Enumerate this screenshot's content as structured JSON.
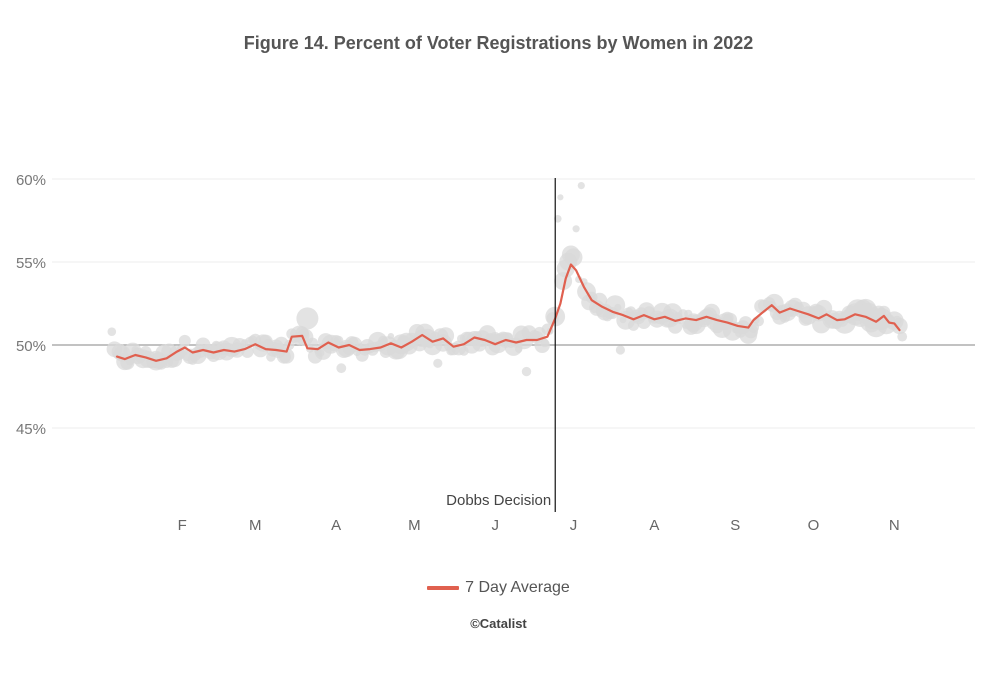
{
  "chart_data": {
    "type": "scatter",
    "title": "Figure 14. Percent of Voter Registrations by Women in 2022",
    "xlabel": "",
    "ylabel": "",
    "x_unit": "day of year 2022",
    "xlim": [
      0,
      336
    ],
    "ylim": [
      40,
      60
    ],
    "baseline": 50,
    "y_ticks": [
      {
        "value": 60,
        "label": "60%"
      },
      {
        "value": 55,
        "label": "55%"
      },
      {
        "value": 50,
        "label": "50%"
      },
      {
        "value": 45,
        "label": "45%"
      }
    ],
    "x_ticks": [
      {
        "value": 32,
        "label": "F"
      },
      {
        "value": 60,
        "label": "M"
      },
      {
        "value": 91,
        "label": "A"
      },
      {
        "value": 121,
        "label": "M"
      },
      {
        "value": 152,
        "label": "J"
      },
      {
        "value": 182,
        "label": "J"
      },
      {
        "value": 213,
        "label": "A"
      },
      {
        "value": 244,
        "label": "S"
      },
      {
        "value": 274,
        "label": "O"
      },
      {
        "value": 305,
        "label": "N"
      }
    ],
    "annotation": {
      "day": 175,
      "label": "Dobbs Decision"
    },
    "seven_day_average": {
      "name": "7 Day Average",
      "color": "#e0604f",
      "anchors": [
        [
          7,
          49.3
        ],
        [
          10,
          49.15
        ],
        [
          14,
          49.4
        ],
        [
          18,
          49.25
        ],
        [
          22,
          49.05
        ],
        [
          26,
          49.2
        ],
        [
          30,
          49.6
        ],
        [
          33,
          49.85
        ],
        [
          36,
          49.55
        ],
        [
          40,
          49.7
        ],
        [
          44,
          49.55
        ],
        [
          48,
          49.7
        ],
        [
          52,
          49.6
        ],
        [
          56,
          49.75
        ],
        [
          60,
          50.05
        ],
        [
          64,
          49.75
        ],
        [
          68,
          49.7
        ],
        [
          72,
          49.6
        ],
        [
          74,
          50.5
        ],
        [
          78,
          50.55
        ],
        [
          80,
          49.8
        ],
        [
          84,
          49.75
        ],
        [
          88,
          50.15
        ],
        [
          92,
          49.85
        ],
        [
          96,
          50.0
        ],
        [
          100,
          49.7
        ],
        [
          104,
          49.75
        ],
        [
          108,
          49.85
        ],
        [
          112,
          50.1
        ],
        [
          116,
          49.85
        ],
        [
          120,
          50.2
        ],
        [
          124,
          50.6
        ],
        [
          128,
          50.2
        ],
        [
          132,
          50.4
        ],
        [
          136,
          49.9
        ],
        [
          140,
          50.05
        ],
        [
          144,
          50.45
        ],
        [
          148,
          50.3
        ],
        [
          152,
          50.05
        ],
        [
          156,
          50.3
        ],
        [
          160,
          50.15
        ],
        [
          164,
          50.3
        ],
        [
          168,
          50.3
        ],
        [
          172,
          50.5
        ],
        [
          175,
          51.6
        ],
        [
          177,
          52.5
        ],
        [
          179,
          54.0
        ],
        [
          181,
          54.85
        ],
        [
          183,
          54.5
        ],
        [
          186,
          53.5
        ],
        [
          189,
          52.7
        ],
        [
          193,
          52.3
        ],
        [
          197,
          52.0
        ],
        [
          201,
          51.8
        ],
        [
          205,
          51.55
        ],
        [
          209,
          51.8
        ],
        [
          213,
          51.55
        ],
        [
          217,
          51.7
        ],
        [
          221,
          51.45
        ],
        [
          225,
          51.6
        ],
        [
          229,
          51.5
        ],
        [
          233,
          51.7
        ],
        [
          237,
          51.5
        ],
        [
          241,
          51.35
        ],
        [
          245,
          51.15
        ],
        [
          249,
          51.05
        ],
        [
          251,
          51.5
        ],
        [
          254,
          51.9
        ],
        [
          258,
          52.4
        ],
        [
          261,
          51.95
        ],
        [
          265,
          52.2
        ],
        [
          268,
          52.05
        ],
        [
          272,
          51.85
        ],
        [
          276,
          51.6
        ],
        [
          279,
          51.85
        ],
        [
          283,
          51.5
        ],
        [
          286,
          51.55
        ],
        [
          290,
          51.85
        ],
        [
          294,
          51.7
        ],
        [
          298,
          51.4
        ],
        [
          301,
          51.75
        ],
        [
          303,
          51.35
        ],
        [
          305,
          51.3
        ],
        [
          307,
          50.9
        ]
      ]
    },
    "daily_points_color": "#d9d9d9"
  },
  "legend": {
    "label": "7 Day Average"
  },
  "credit": "©Catalist"
}
